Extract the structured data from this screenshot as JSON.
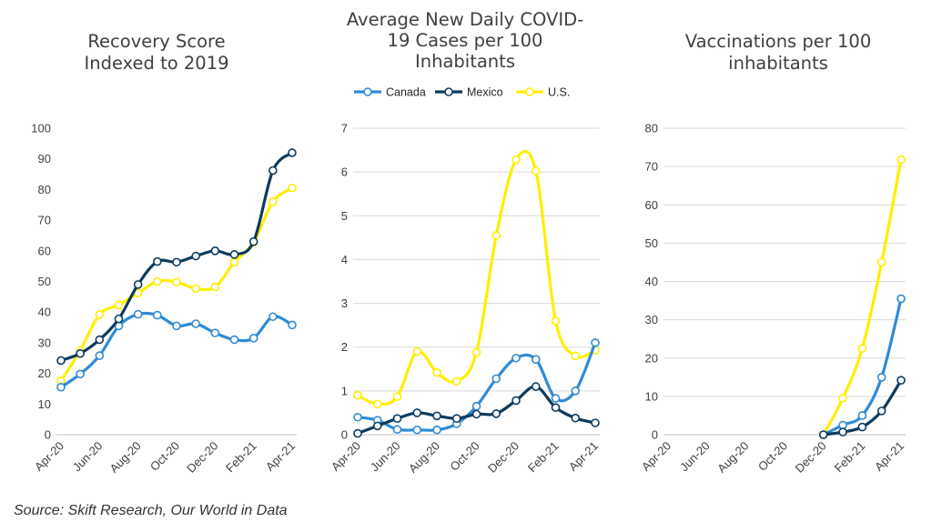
{
  "source": "Source: Skift Research, Our World in Data",
  "colors": {
    "Canada": "#2f8bd6",
    "Mexico": "#0d3b5e",
    "U.S.": "#ffee00",
    "grid": "#d9d9d9",
    "axis": "#bfbfbf"
  },
  "legend": [
    "Canada",
    "Mexico",
    "U.S."
  ],
  "chart_data": [
    {
      "type": "line",
      "title": [
        "Recovery Score",
        "Indexed to 2019"
      ],
      "xlabel": "",
      "ylabel": "",
      "x_tick_labels": [
        "Apr-20",
        "Jun-20",
        "Aug-20",
        "Oct-20",
        "Dec-20",
        "Feb-21",
        "Apr-21"
      ],
      "ylim": [
        0,
        100
      ],
      "yticks": [
        0,
        10,
        20,
        30,
        40,
        50,
        60,
        70,
        80,
        90,
        100
      ],
      "grid": false,
      "series": [
        {
          "name": "Canada",
          "values": [
            15.5,
            19.8,
            25.8,
            35.5,
            39.3,
            39.0,
            35.5,
            36.2,
            33.2,
            31.0,
            31.5,
            38.5,
            35.8
          ]
        },
        {
          "name": "Mexico",
          "values": [
            24.2,
            26.5,
            31.0,
            37.8,
            49.0,
            56.5,
            56.3,
            58.3,
            60.0,
            58.8,
            63.0,
            86.2,
            92.0
          ]
        },
        {
          "name": "U.S.",
          "values": [
            17.5,
            27.5,
            39.2,
            42.3,
            46.2,
            50.0,
            49.8,
            47.7,
            48.2,
            56.3,
            62.8,
            76.0,
            80.5
          ]
        }
      ]
    },
    {
      "type": "line",
      "title": [
        "Average New Daily COVID-",
        "19 Cases per 100",
        "Inhabitants"
      ],
      "xlabel": "",
      "ylabel": "",
      "x_tick_labels": [
        "Apr-20",
        "Jun-20",
        "Aug-20",
        "Oct-20",
        "Dec-20",
        "Feb-21",
        "Apr-21"
      ],
      "ylim": [
        0,
        7
      ],
      "yticks": [
        0,
        1,
        2,
        3,
        4,
        5,
        6,
        7
      ],
      "grid": true,
      "legend_position": "top",
      "series": [
        {
          "name": "Canada",
          "values": [
            0.4,
            0.33,
            0.12,
            0.11,
            0.11,
            0.25,
            0.65,
            1.28,
            1.75,
            1.72,
            0.83,
            1.0,
            2.1
          ]
        },
        {
          "name": "Mexico",
          "values": [
            0.03,
            0.2,
            0.37,
            0.5,
            0.43,
            0.37,
            0.47,
            0.48,
            0.78,
            1.1,
            0.62,
            0.38,
            0.27
          ]
        },
        {
          "name": "U.S.",
          "values": [
            0.9,
            0.7,
            0.87,
            1.9,
            1.42,
            1.22,
            1.88,
            4.55,
            6.28,
            6.02,
            2.6,
            1.8,
            1.93
          ]
        }
      ]
    },
    {
      "type": "line",
      "title": [
        "Vaccinations per 100",
        "inhabitants"
      ],
      "xlabel": "",
      "ylabel": "",
      "x_tick_labels": [
        "Apr-20",
        "Jun-20",
        "Aug-20",
        "Oct-20",
        "Dec-20",
        "Feb-21",
        "Apr-21"
      ],
      "ylim": [
        0,
        80
      ],
      "yticks": [
        0,
        10,
        20,
        30,
        40,
        50,
        60,
        70,
        80
      ],
      "grid": true,
      "series": [
        {
          "name": "Canada",
          "start_index": 8,
          "values": [
            0.0,
            2.5,
            5.0,
            15.0,
            35.5
          ]
        },
        {
          "name": "Mexico",
          "start_index": 8,
          "values": [
            0.0,
            0.7,
            2.0,
            6.2,
            14.2
          ]
        },
        {
          "name": "U.S.",
          "start_index": 8,
          "values": [
            0.0,
            9.5,
            22.5,
            45.0,
            71.8
          ]
        }
      ]
    }
  ]
}
